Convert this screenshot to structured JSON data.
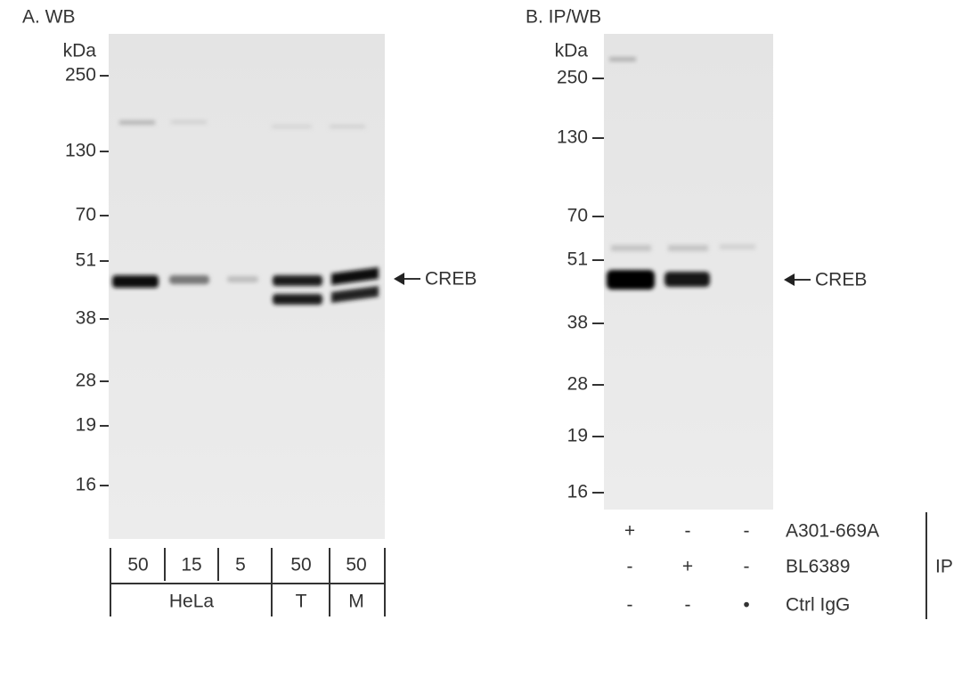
{
  "panels": [
    {
      "label": "A. WB",
      "unit": "kDa",
      "markers": [
        "250",
        "130",
        "70",
        "51",
        "38",
        "28",
        "19",
        "16"
      ],
      "target": "CREB",
      "lanes": [
        "50",
        "15",
        "5",
        "50",
        "50"
      ],
      "groups": [
        "HeLa",
        "T",
        "M"
      ]
    },
    {
      "label": "B. IP/WB",
      "unit": "kDa",
      "markers": [
        "250",
        "130",
        "70",
        "51",
        "38",
        "28",
        "19",
        "16"
      ],
      "target": "CREB",
      "conditions": [
        {
          "name": "A301-669A",
          "marks": [
            "+",
            "-",
            "-"
          ]
        },
        {
          "name": "BL6389",
          "marks": [
            "-",
            "+",
            "-"
          ]
        },
        {
          "name": "Ctrl IgG",
          "marks": [
            "-",
            "-",
            "•"
          ]
        }
      ],
      "group_label": "IP"
    }
  ]
}
